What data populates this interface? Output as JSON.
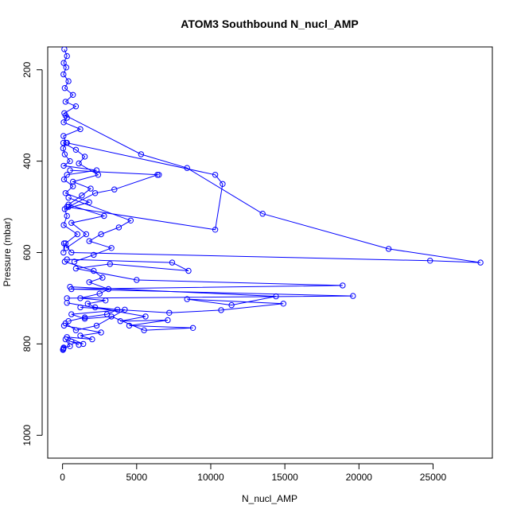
{
  "chart_data": {
    "type": "line",
    "title": "ATOM3 Southbound N_nucl_AMP",
    "xlabel": "N_nucl_AMP",
    "ylabel": "Pressure (mbar)",
    "xlim": [
      -1000,
      29000
    ],
    "ylim": [
      1050,
      150
    ],
    "y_reversed": true,
    "x_ticks": [
      0,
      5000,
      10000,
      15000,
      20000,
      25000
    ],
    "x_tick_labels": [
      "0",
      "5000",
      "10000",
      "15000",
      "20000",
      "25000"
    ],
    "y_ticks": [
      200,
      400,
      600,
      800,
      1000
    ],
    "y_tick_labels": [
      "200",
      "400",
      "600",
      "800",
      "1000"
    ],
    "grid": false,
    "marker": "open-circle",
    "line_color": "#0000ff",
    "series": [
      {
        "x": [
          120,
          300,
          80,
          250,
          60,
          400,
          150,
          700,
          200,
          900,
          120,
          300,
          80,
          1200,
          60,
          250,
          40,
          150,
          500,
          80,
          2300,
          300,
          100,
          700,
          200,
          1800,
          150,
          300,
          80,
          1000,
          200,
          60
        ],
        "y": [
          155,
          170,
          185,
          195,
          210,
          225,
          240,
          255,
          270,
          280,
          295,
          305,
          315,
          330,
          345,
          360,
          372,
          385,
          400,
          410,
          420,
          430,
          440,
          455,
          470,
          490,
          505,
          520,
          540,
          560,
          580,
          600
        ]
      },
      {
        "x": [
          200,
          5300,
          8400,
          13500,
          22000,
          28200,
          24800,
          600,
          100
        ],
        "y": [
          300,
          385,
          415,
          515,
          592,
          622,
          618,
          600,
          580
        ]
      },
      {
        "x": [
          300,
          10300,
          10800,
          10300,
          300
        ],
        "y": [
          360,
          430,
          450,
          550,
          500
        ]
      },
      {
        "x": [
          500,
          6500,
          6400,
          3500,
          2200,
          400
        ],
        "y": [
          420,
          430,
          430,
          462,
          470,
          500
        ]
      },
      {
        "x": [
          400,
          4600,
          3800,
          2600,
          1800,
          3300,
          2100,
          800
        ],
        "y": [
          480,
          530,
          545,
          560,
          575,
          590,
          605,
          620
        ]
      },
      {
        "x": [
          300,
          7400,
          8500,
          3200,
          900,
          5000,
          18900,
          600,
          19600,
          300
        ],
        "y": [
          615,
          622,
          640,
          625,
          635,
          660,
          672,
          680,
          695,
          700
        ]
      },
      {
        "x": [
          500,
          14400,
          11400,
          8400,
          14900,
          10700,
          7200,
          1200
        ],
        "y": [
          675,
          696,
          715,
          702,
          712,
          726,
          732,
          720
        ]
      },
      {
        "x": [
          300,
          5600,
          3900,
          7100,
          4500,
          8800,
          5500,
          3300,
          1500,
          600,
          4200,
          2300,
          900,
          200
        ],
        "y": [
          710,
          740,
          750,
          748,
          760,
          765,
          770,
          740,
          745,
          735,
          725,
          760,
          770,
          755
        ]
      },
      {
        "x": [
          100,
          2600,
          1200,
          2000,
          300,
          1400,
          600,
          1100,
          200,
          500,
          80,
          60,
          40,
          30
        ],
        "y": [
          760,
          775,
          782,
          790,
          785,
          800,
          795,
          802,
          790,
          805,
          808,
          810,
          812,
          813
        ]
      },
      {
        "x": [
          150,
          2100,
          2700,
          1800,
          3100,
          2500,
          1200,
          2900,
          1700,
          2200,
          3700,
          3000,
          1500,
          400
        ],
        "y": [
          620,
          640,
          655,
          665,
          680,
          690,
          700,
          705,
          712,
          720,
          725,
          735,
          742,
          750
        ]
      },
      {
        "x": [
          50,
          900,
          1500,
          1100,
          2400,
          700,
          1900,
          1300,
          400,
          2800,
          600,
          1600,
          250
        ],
        "y": [
          360,
          375,
          390,
          405,
          430,
          445,
          460,
          475,
          495,
          520,
          535,
          560,
          590
        ]
      }
    ]
  }
}
